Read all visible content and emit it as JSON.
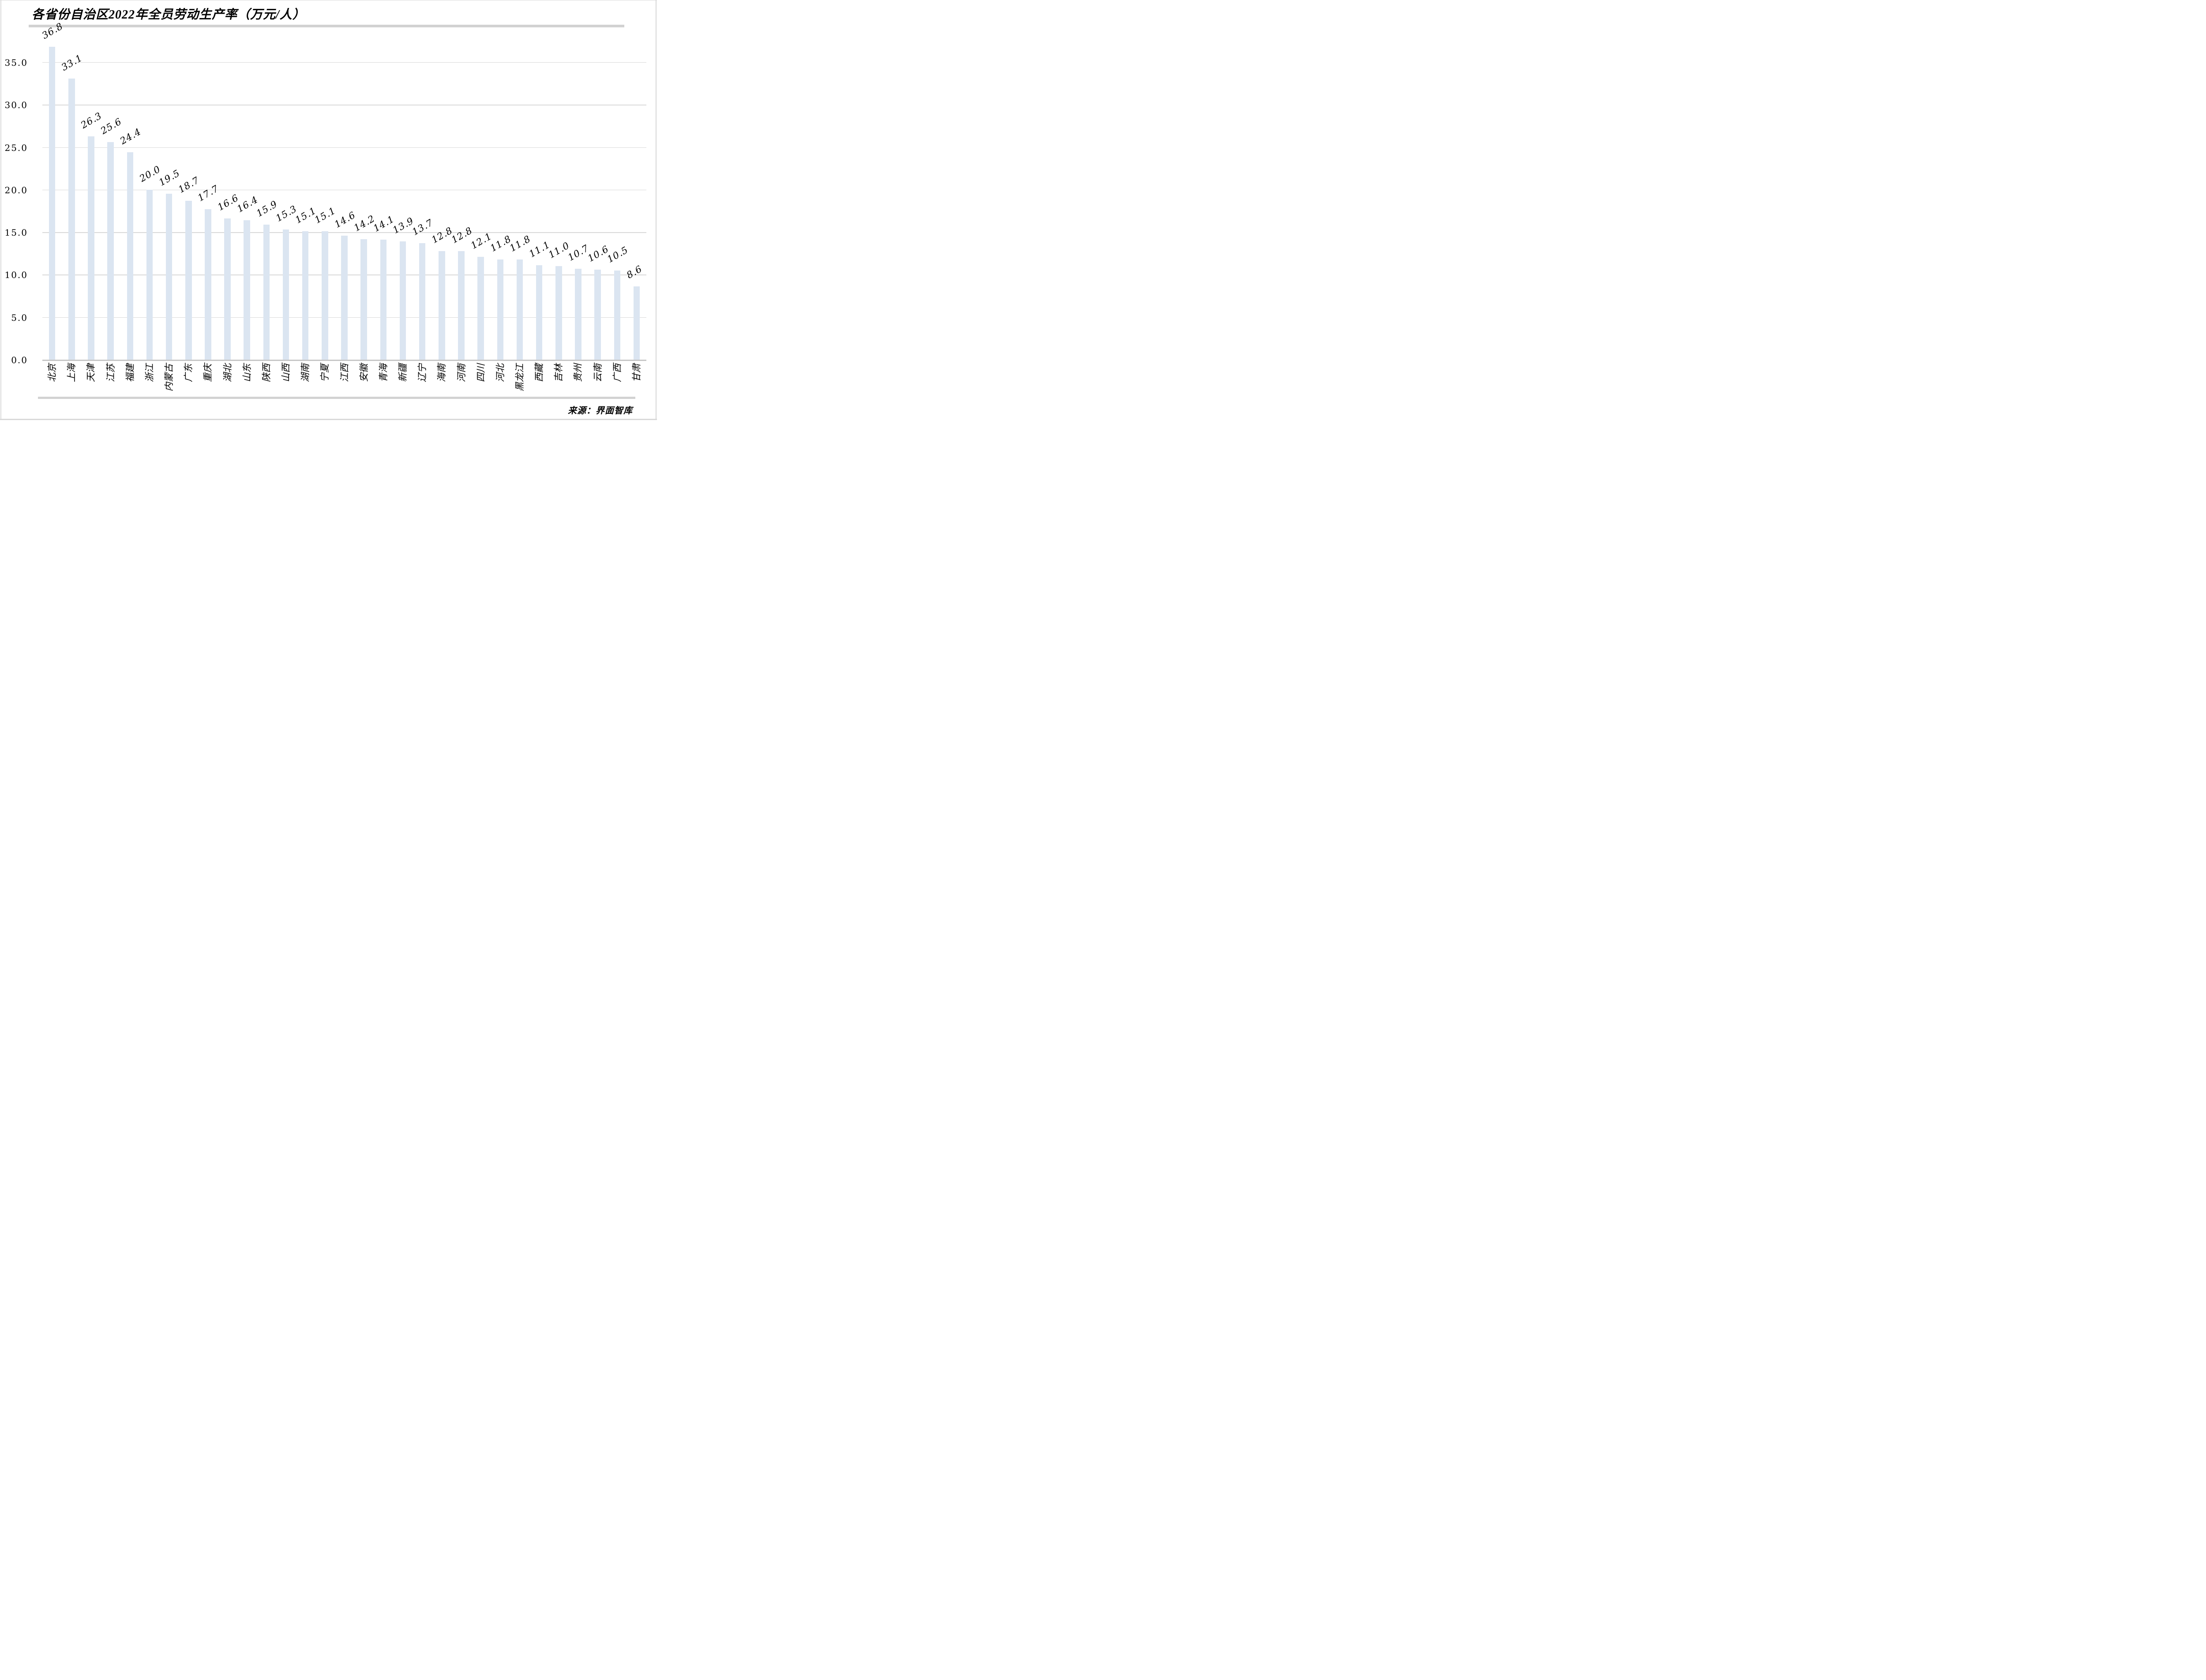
{
  "header": {
    "title": "各省份自治区2022年全员劳动生产率（万元/人）"
  },
  "footer": {
    "source": "来源：界面智库"
  },
  "chart_data": {
    "type": "bar",
    "title": "各省份自治区2022年全员劳动生产率（万元/人）",
    "xlabel": "",
    "ylabel": "",
    "categories": [
      "北京",
      "上海",
      "天津",
      "江苏",
      "福建",
      "浙江",
      "内蒙古",
      "广东",
      "重庆",
      "湖北",
      "山东",
      "陕西",
      "山西",
      "湖南",
      "宁夏",
      "江西",
      "安徽",
      "青海",
      "新疆",
      "辽宁",
      "海南",
      "河南",
      "四川",
      "河北",
      "黑龙江",
      "西藏",
      "吉林",
      "贵州",
      "云南",
      "广西",
      "甘肃"
    ],
    "values": [
      36.8,
      33.1,
      26.3,
      25.6,
      24.4,
      20.0,
      19.5,
      18.7,
      17.7,
      16.6,
      16.4,
      15.9,
      15.3,
      15.1,
      15.1,
      14.6,
      14.2,
      14.1,
      13.9,
      13.7,
      12.8,
      12.8,
      12.1,
      11.8,
      11.8,
      11.1,
      11.0,
      10.7,
      10.6,
      10.5,
      8.6
    ],
    "value_labels": [
      "36.8",
      "33.1",
      "26.3",
      "25.6",
      "24.4",
      "20.0",
      "19.5",
      "18.7",
      "17.7",
      "16.6",
      "16.4",
      "15.9",
      "15.3",
      "15.1",
      "15.1",
      "14.6",
      "14.2",
      "14.1",
      "13.9",
      "13.7",
      "12.8",
      "12.8",
      "12.1",
      "11.8",
      "11.8",
      "11.1",
      "11.0",
      "10.7",
      "10.6",
      "10.5",
      "8.6"
    ],
    "ylim": [
      0.0,
      38.5
    ],
    "ytick_values": [
      0,
      5,
      10,
      15,
      20,
      25,
      30,
      35
    ],
    "ytick_labels": [
      "0.0",
      "5.0",
      "10.0",
      "15.0",
      "20.0",
      "25.0",
      "30.0",
      "35.0"
    ],
    "grid": "horizontal",
    "legend": "none",
    "bar_color": "#dbe5f1",
    "gridline_color": "#d9d9d9",
    "axisline_color": "#c7c7c7",
    "value_label_rotation_deg": -30,
    "xlabel_rotation_deg": -90,
    "source": "来源：界面智库"
  }
}
